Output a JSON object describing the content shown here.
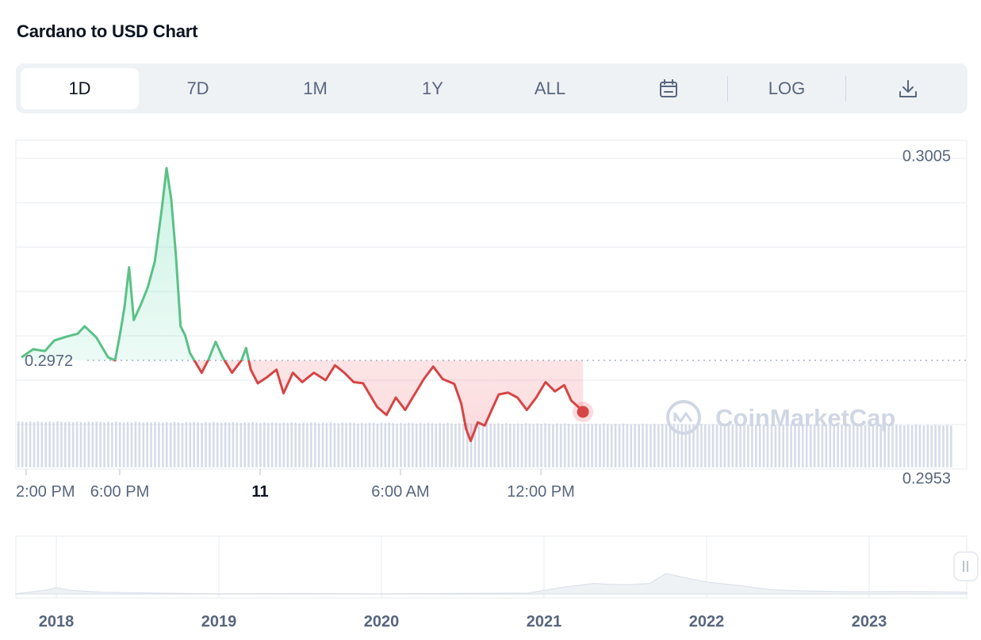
{
  "title": "Cardano to USD Chart",
  "toolbar": {
    "tabs": [
      "1D",
      "7D",
      "1M",
      "1Y",
      "ALL"
    ],
    "active_tab": "1D",
    "log_label": "LOG",
    "calendar_icon": "calendar-icon",
    "download_icon": "download-icon"
  },
  "colors": {
    "up": "#16c784",
    "down": "#ea3943",
    "line_up": "#5ac186",
    "line_down": "#d64545",
    "grid": "#eff2f5",
    "axis_text": "#58667e",
    "volume": "#cfd6e4"
  },
  "watermark": "CoinMarketCap",
  "chart_data": [
    {
      "type": "line",
      "title": "Cardano to USD Chart",
      "xlabel": "",
      "ylabel": "",
      "x_tick_labels": [
        "2:00 PM",
        "6:00 PM",
        "11",
        "6:00 AM",
        "12:00 PM"
      ],
      "x_tick_hours": [
        0,
        4,
        10,
        16,
        22
      ],
      "y_tick_labels": [
        "0.3005",
        "0.2953"
      ],
      "y_ticks": [
        0.3005,
        0.2953
      ],
      "reference_price": 0.2972,
      "reference_label": "0.2972",
      "ylim": [
        0.29545,
        0.30075
      ],
      "x_unit": "hours since 2:00 PM",
      "grid": true,
      "series": [
        {
          "x": [
            -0.2,
            0.3,
            0.8,
            1.2,
            1.7,
            2.2,
            2.5,
            3.0,
            3.5,
            3.8,
            4.0,
            4.2,
            4.4,
            4.6,
            4.9,
            5.2,
            5.5,
            5.8,
            6.0,
            6.2,
            6.4,
            6.6,
            6.8,
            7.0,
            7.5,
            7.8,
            8.1,
            8.4,
            8.8,
            9.2,
            9.4,
            9.6,
            9.9,
            10.3,
            10.7,
            11.0,
            11.4,
            11.8,
            12.3,
            12.8,
            13.2,
            13.6,
            14.0,
            14.4,
            15.0,
            15.4,
            15.8,
            16.2,
            16.6,
            17.0,
            17.4,
            17.8,
            18.3,
            18.6,
            18.8,
            19.0,
            19.3,
            19.6,
            19.9,
            20.2,
            20.6,
            21.0,
            21.4,
            21.8,
            22.2,
            22.6,
            23.0,
            23.3,
            23.6,
            23.8
          ],
          "values": [
            0.29725,
            0.29738,
            0.29735,
            0.29752,
            0.29758,
            0.29763,
            0.29775,
            0.29757,
            0.29725,
            0.2972,
            0.2976,
            0.29805,
            0.2987,
            0.29785,
            0.2981,
            0.29838,
            0.2988,
            0.29965,
            0.3003,
            0.2998,
            0.2989,
            0.29775,
            0.2976,
            0.29732,
            0.297,
            0.29722,
            0.2975,
            0.29725,
            0.297,
            0.2972,
            0.2974,
            0.29705,
            0.29683,
            0.29693,
            0.29705,
            0.29667,
            0.297,
            0.29685,
            0.297,
            0.29688,
            0.29712,
            0.297,
            0.29685,
            0.29683,
            0.29645,
            0.29632,
            0.2966,
            0.2964,
            0.29665,
            0.2969,
            0.2971,
            0.2969,
            0.29682,
            0.2965,
            0.2961,
            0.2959,
            0.2962,
            0.29615,
            0.2964,
            0.29665,
            0.29668,
            0.2966,
            0.2964,
            0.2966,
            0.29685,
            0.2967,
            0.2968,
            0.29655,
            0.29645,
            0.29637
          ]
        }
      ],
      "volume_bar_count": 240
    },
    {
      "type": "area",
      "x_tick_labels": [
        "2018",
        "2019",
        "2020",
        "2021",
        "2022",
        "2023"
      ],
      "x": [
        2017.75,
        2017.95,
        2018.0,
        2018.1,
        2018.3,
        2018.6,
        2019.0,
        2019.5,
        2020.0,
        2020.5,
        2020.9,
        2021.1,
        2021.3,
        2021.5,
        2021.65,
        2021.75,
        2021.85,
        2022.0,
        2022.2,
        2022.4,
        2022.6,
        2022.9,
        2023.2,
        2023.6
      ],
      "values": [
        0.05,
        0.6,
        0.9,
        0.5,
        0.25,
        0.15,
        0.04,
        0.08,
        0.03,
        0.1,
        0.15,
        0.9,
        1.5,
        1.3,
        1.5,
        2.9,
        2.4,
        1.7,
        1.2,
        0.6,
        0.45,
        0.32,
        0.37,
        0.28
      ]
    }
  ]
}
